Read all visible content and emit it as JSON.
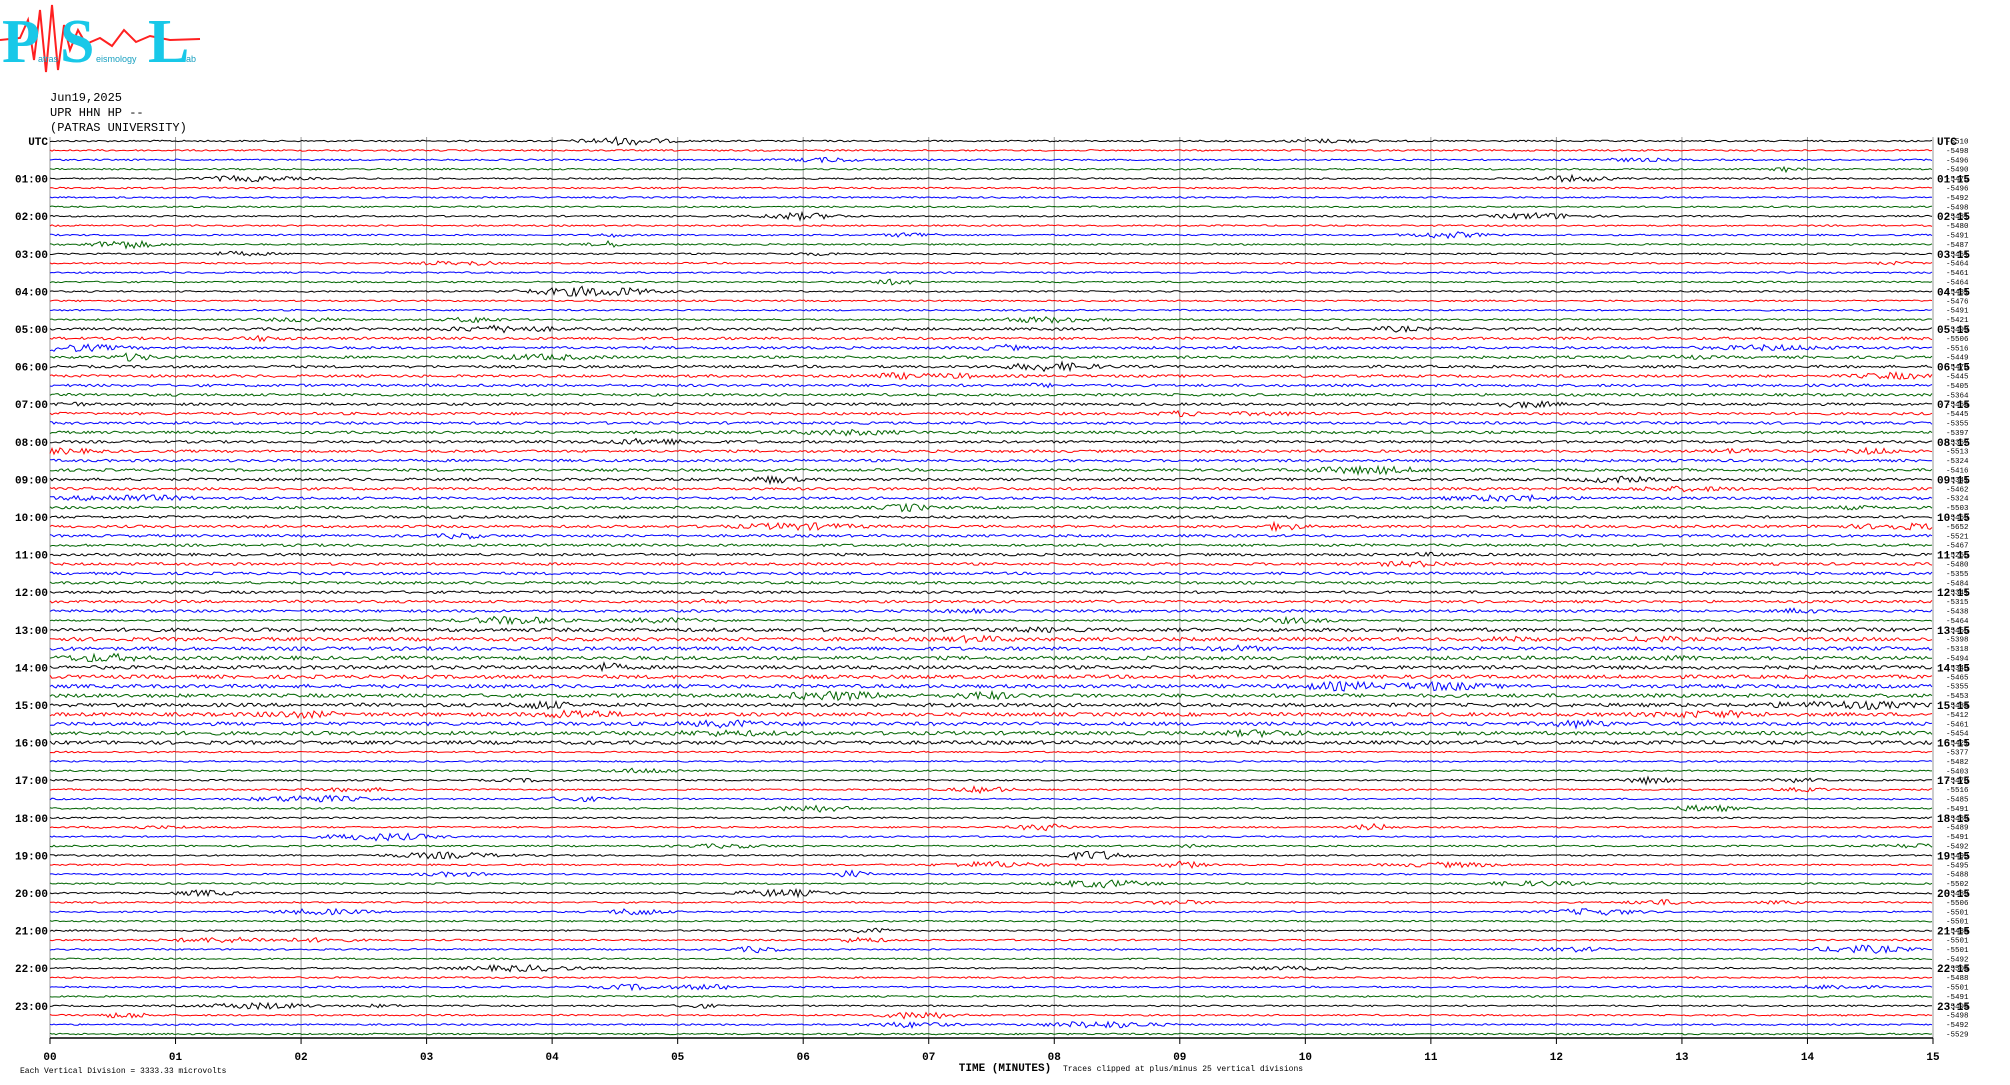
{
  "header": {
    "date": "Jun19,2025",
    "station": "UPR HHN HP --",
    "institution": "(PATRAS UNIVERSITY)"
  },
  "logo": {
    "letters": [
      "P",
      "S",
      "L"
    ],
    "words": [
      "atras",
      "eismology",
      "ab"
    ]
  },
  "left_labels": [
    "UTC",
    "01:00",
    "02:00",
    "03:00",
    "04:00",
    "05:00",
    "06:00",
    "07:00",
    "08:00",
    "09:00",
    "10:00",
    "11:00",
    "12:00",
    "13:00",
    "14:00",
    "15:00",
    "16:00",
    "17:00",
    "18:00",
    "19:00",
    "20:00",
    "21:00",
    "22:00",
    "23:00"
  ],
  "right_labels": [
    "UTC",
    "01:15",
    "02:15",
    "03:15",
    "04:15",
    "05:15",
    "06:15",
    "07:15",
    "08:15",
    "09:15",
    "10:15",
    "11:15",
    "12:15",
    "13:15",
    "14:15",
    "15:15",
    "16:15",
    "17:15",
    "18:15",
    "19:15",
    "20:15",
    "21:15",
    "22:15",
    "23:15"
  ],
  "trace_labels": [
    "-5510",
    "-5498",
    "-5496",
    "-5490",
    "-5475",
    "-5496",
    "-5492",
    "-5498",
    "-5481",
    "-5480",
    "-5491",
    "-5487",
    "-5461",
    "-5464",
    "-5461",
    "-5464",
    "-5481",
    "-5476",
    "-5491",
    "-5421",
    "-5499",
    "-5506",
    "-5516",
    "-5449",
    "-5470",
    "-5445",
    "-5405",
    "-5364",
    "-5464",
    "-5445",
    "-5355",
    "-5397",
    "-5367",
    "-5513",
    "-5324",
    "-5416",
    "-5341",
    "-5462",
    "-5324",
    "-5503",
    "-5469",
    "-5652",
    "-5521",
    "-5467",
    "-5255",
    "-5480",
    "-5355",
    "-5484",
    "-5341",
    "-5315",
    "-5438",
    "-5464",
    "-5455",
    "-5398",
    "-5318",
    "-5494",
    "-5343",
    "-5465",
    "-5355",
    "-5453",
    "-5434",
    "-5412",
    "-5461",
    "-5454",
    "-5421",
    "-5377",
    "-5482",
    "-5403",
    "-5478",
    "-5516",
    "-5485",
    "-5491",
    "-5489",
    "-5489",
    "-5491",
    "-5492",
    "-5499",
    "-5495",
    "-5488",
    "-5502",
    "-5489",
    "-5506",
    "-5501",
    "-5501",
    "-5484",
    "-5501",
    "-5501",
    "-5492",
    "-5504",
    "-5488",
    "-5501",
    "-5491",
    "-5494",
    "-5498",
    "-5492",
    "-5529"
  ],
  "x_labels": [
    "00",
    "01",
    "02",
    "03",
    "04",
    "05",
    "06",
    "07",
    "08",
    "09",
    "10",
    "11",
    "12",
    "13",
    "14",
    "15"
  ],
  "footer": {
    "division": "Each Vertical Division = 3333.33 microvolts",
    "axis_title": "TIME (MINUTES)",
    "clip_note": "Traces clipped at plus/minus 25 vertical divisions"
  }
}
